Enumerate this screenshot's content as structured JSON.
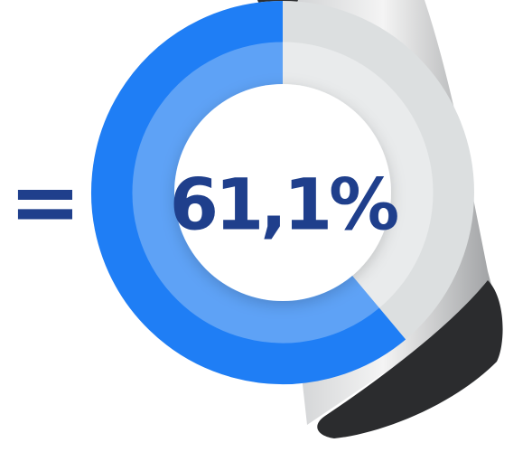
{
  "chart_data": {
    "type": "donut",
    "prefix": "=",
    "values": [
      61.1
    ],
    "value_labels": [
      "61,1%"
    ],
    "ylim": [
      0,
      100
    ],
    "color": "#1f7ef5",
    "inner_color": "#5ea2f6",
    "track_color": "#dcdfe0",
    "inner_track_color": "#e9ebec",
    "text_color": "#1f3f8c"
  }
}
